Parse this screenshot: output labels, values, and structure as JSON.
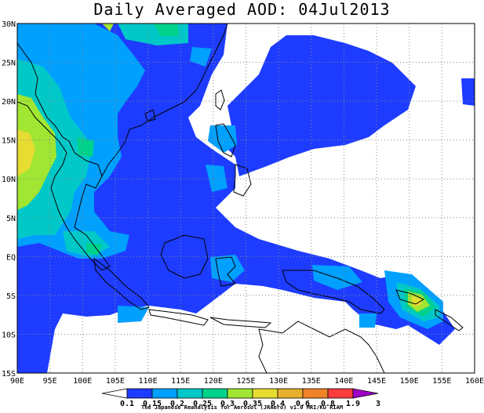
{
  "title": "Daily Averaged AOD: 04Jul2013",
  "credit": "The Japanese Reanalysis for Aerosol (JRAero) v1.0 MRI/KU RIAM",
  "map": {
    "lon_range": [
      90,
      160
    ],
    "lat_range": [
      -15,
      30
    ],
    "lon_tick_labels": [
      "90E",
      "95E",
      "100E",
      "105E",
      "110E",
      "115E",
      "120E",
      "125E",
      "130E",
      "135E",
      "140E",
      "145E",
      "150E",
      "155E",
      "160E"
    ],
    "lat_tick_labels": [
      "15S",
      "10S",
      "5S",
      "EQ",
      "5N",
      "10N",
      "15N",
      "20N",
      "25N",
      "30N"
    ],
    "grid": "dotted",
    "lines": [
      "coastlines"
    ]
  },
  "colorbar": {
    "levels": [
      "0.1",
      "0.15",
      "0.2",
      "0.25",
      "0.3",
      "0.35",
      "0.4",
      "0.6",
      "0.8",
      "1.9",
      "3"
    ],
    "colors": [
      "#ffffff",
      "#1e3cff",
      "#00a0ff",
      "#00c8c8",
      "#00d28c",
      "#a0e632",
      "#e6dc32",
      "#e6af2d",
      "#f08228",
      "#fa3c3c",
      "#a000c8"
    ]
  }
}
